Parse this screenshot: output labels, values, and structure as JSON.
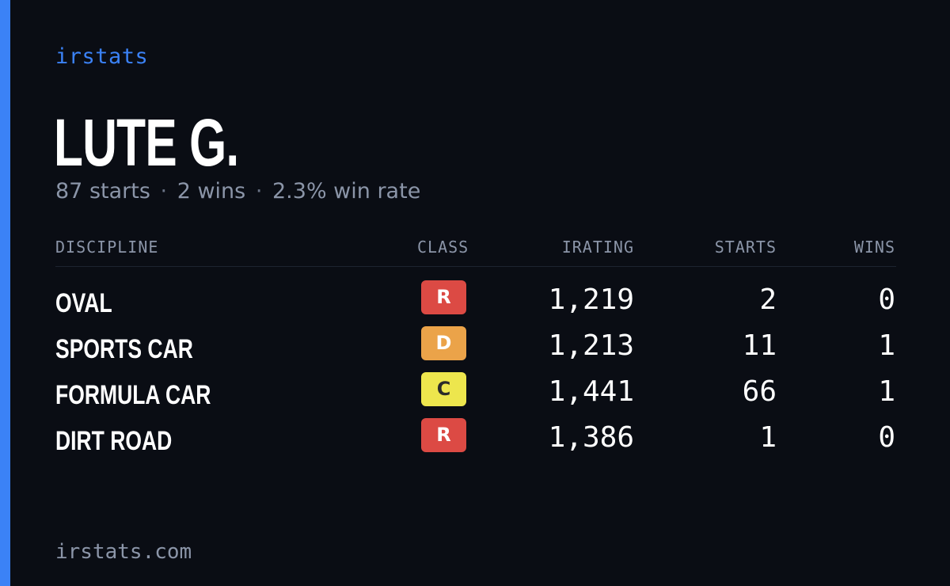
{
  "brand": "irstats",
  "driver": {
    "name": "LUTE G.",
    "starts_text": "87 starts",
    "wins_text": "2 wins",
    "win_rate_text": "2.3% win rate",
    "separator": "·"
  },
  "table": {
    "headers": {
      "discipline": "DISCIPLINE",
      "class": "CLASS",
      "irating": "IRATING",
      "starts": "STARTS",
      "wins": "WINS"
    },
    "rows": [
      {
        "discipline": "OVAL",
        "class": "R",
        "irating": "1,219",
        "starts": "2",
        "wins": "0"
      },
      {
        "discipline": "SPORTS CAR",
        "class": "D",
        "irating": "1,213",
        "starts": "11",
        "wins": "1"
      },
      {
        "discipline": "FORMULA CAR",
        "class": "C",
        "irating": "1,441",
        "starts": "66",
        "wins": "1"
      },
      {
        "discipline": "DIRT ROAD",
        "class": "R",
        "irating": "1,386",
        "starts": "1",
        "wins": "0"
      }
    ]
  },
  "class_colors": {
    "R": {
      "bg": "#dc4a44",
      "fg": "#ffffff"
    },
    "D": {
      "bg": "#eba349",
      "fg": "#ffffff"
    },
    "C": {
      "bg": "#ede64d",
      "fg": "#2a2a2a"
    }
  },
  "colors": {
    "background": "#0a0d14",
    "accent": "#3b82f6",
    "muted_text": "#8b95a8"
  },
  "footer": "irstats.com"
}
